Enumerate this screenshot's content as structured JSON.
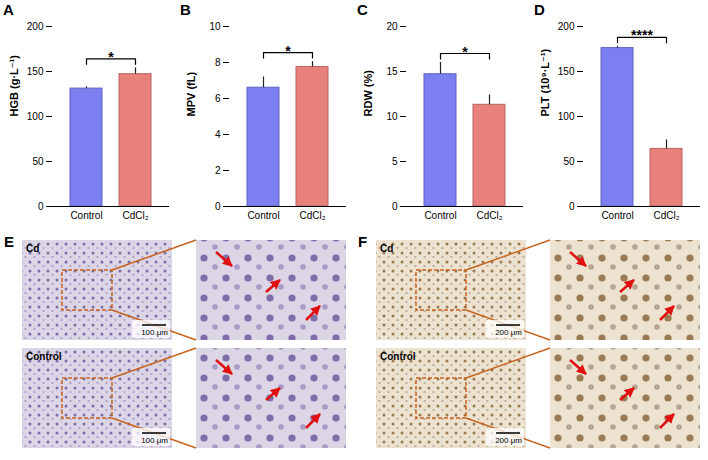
{
  "chart_data": [
    {
      "type": "bar",
      "label": "A",
      "y_label": "HGB (g·L⁻¹)",
      "categories": [
        "Control",
        "CdCl₂"
      ],
      "values": [
        131,
        147
      ],
      "errors": [
        2,
        7
      ],
      "colors": [
        "#7b7ff0",
        "#e8807c"
      ],
      "ylim": [
        0,
        200
      ],
      "yticks": [
        0,
        50,
        100,
        150,
        200
      ],
      "grid": false,
      "annotation": "*"
    },
    {
      "type": "bar",
      "label": "B",
      "y_label": "MPV (fL)",
      "categories": [
        "Control",
        "CdCl₂"
      ],
      "values": [
        6.6,
        7.75
      ],
      "errors": [
        0.6,
        0.3
      ],
      "colors": [
        "#7b7ff0",
        "#e8807c"
      ],
      "ylim": [
        0,
        10
      ],
      "yticks": [
        0,
        2,
        4,
        6,
        8,
        10
      ],
      "grid": false,
      "annotation": "*"
    },
    {
      "type": "bar",
      "label": "C",
      "y_label": "RDW (%)",
      "categories": [
        "Control",
        "CdCl₂"
      ],
      "values": [
        14.7,
        11.3
      ],
      "errors": [
        1.3,
        1.1
      ],
      "colors": [
        "#7b7ff0",
        "#e8807c"
      ],
      "ylim": [
        0,
        20
      ],
      "yticks": [
        0,
        5,
        10,
        15,
        20
      ],
      "grid": false,
      "annotation": "*"
    },
    {
      "type": "bar",
      "label": "D",
      "y_label": "PLT (10⁹·L⁻¹)",
      "categories": [
        "Control",
        "CdCl₂"
      ],
      "values": [
        176,
        64
      ],
      "errors": [
        2,
        10
      ],
      "colors": [
        "#7b7ff0",
        "#e8807c"
      ],
      "ylim": [
        0,
        200
      ],
      "yticks": [
        0,
        50,
        100,
        150,
        200
      ],
      "grid": false,
      "annotation": "****"
    }
  ],
  "image_panels": [
    {
      "label": "E",
      "rows": [
        {
          "label": "Cd",
          "scale_bar": "100 μm"
        },
        {
          "label": "Control",
          "scale_bar": "100 μm"
        }
      ]
    },
    {
      "label": "F",
      "rows": [
        {
          "label": "Cd",
          "scale_bar": "200 μm"
        },
        {
          "label": "Control",
          "scale_bar": "200 μm"
        }
      ]
    }
  ]
}
